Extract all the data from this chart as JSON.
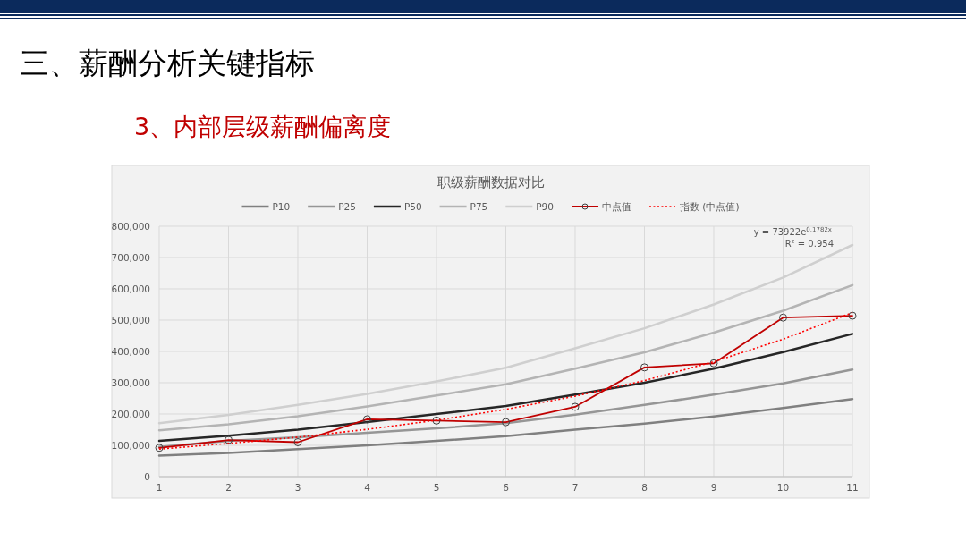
{
  "chart_data": {
    "type": "line",
    "title": "职级薪酬数据对比",
    "annotations": [
      "三、薪酬分析关键指标",
      "3、内部层级薪酬偏离度",
      "y = 73922e$^{0.1782x}$",
      "R² = 0.954"
    ],
    "x": [
      1,
      2,
      3,
      4,
      5,
      6,
      7,
      8,
      9,
      10,
      11
    ],
    "xlim": [
      1,
      11
    ],
    "xticks": [
      1,
      2,
      3,
      4,
      5,
      6,
      7,
      8,
      9,
      10,
      11
    ],
    "ylim": [
      0,
      800000
    ],
    "yticks": [
      {
        "value": 0,
        "label": "0"
      },
      {
        "value": 100000,
        "label": "100,000"
      },
      {
        "value": 200000,
        "label": "200,000"
      },
      {
        "value": 300000,
        "label": "300,000"
      },
      {
        "value": 400000,
        "label": "400,000"
      },
      {
        "value": 500000,
        "label": "500,000"
      },
      {
        "value": 600000,
        "label": "600,000"
      },
      {
        "value": 700000,
        "label": "700,000"
      },
      {
        "value": 800000,
        "label": "800,000"
      }
    ],
    "grid": true,
    "legend": "top",
    "series": [
      {
        "name": "P10",
        "color": "#808080",
        "values": [
          67000,
          76000,
          88000,
          100000,
          114000,
          129000,
          150000,
          169000,
          192000,
          219000,
          248000
        ]
      },
      {
        "name": "P25",
        "color": "#969696",
        "values": [
          95000,
          114000,
          126000,
          140000,
          154000,
          171000,
          198000,
          229000,
          262000,
          298000,
          342000
        ]
      },
      {
        "name": "P50",
        "color": "#262626",
        "values": [
          114000,
          131000,
          150000,
          174000,
          200000,
          226000,
          262000,
          300000,
          345000,
          398000,
          456000
        ]
      },
      {
        "name": "P75",
        "color": "#b4b4b4",
        "values": [
          148000,
          167000,
          193000,
          224000,
          259000,
          295000,
          345000,
          397000,
          460000,
          530000,
          612000
        ]
      },
      {
        "name": "P90",
        "color": "#cfcfcf",
        "values": [
          171000,
          197000,
          229000,
          264000,
          304000,
          348000,
          410000,
          474000,
          550000,
          636000,
          740000
        ]
      },
      {
        "name": "中点值",
        "color": "#c00000",
        "marker": "circle",
        "values": [
          92000,
          117000,
          110000,
          183000,
          179000,
          174000,
          223000,
          349000,
          362000,
          508000,
          514000
        ]
      },
      {
        "name": "指数 (中点值)",
        "color": "#ff0000",
        "line_style": "dotted",
        "values": [
          88000,
          106000,
          126000,
          151000,
          180000,
          215000,
          257000,
          307000,
          367000,
          439000,
          524000
        ]
      }
    ]
  }
}
